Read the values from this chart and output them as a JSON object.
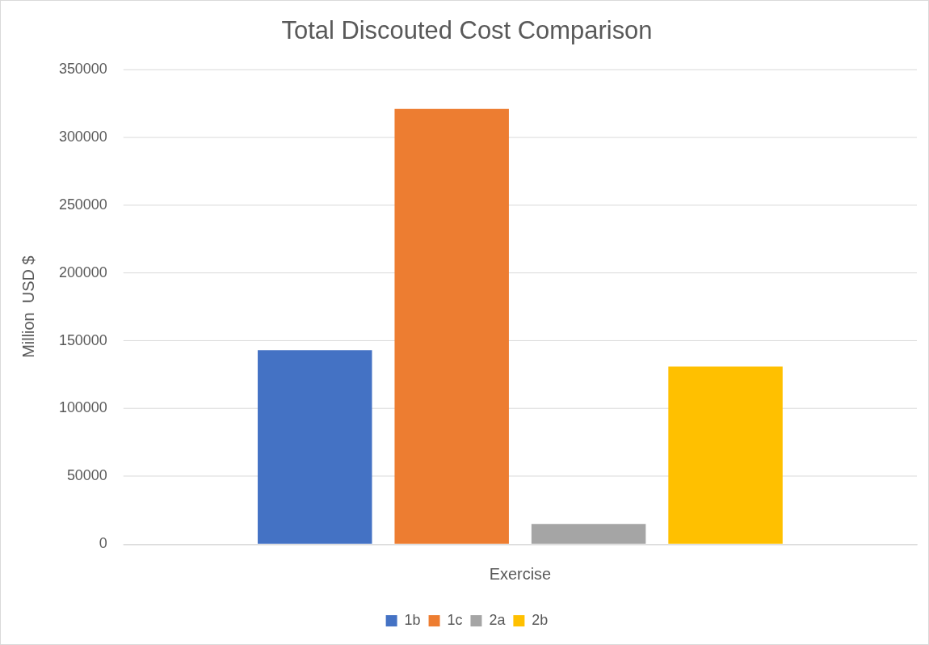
{
  "chart_data": {
    "type": "bar",
    "title": "Total Discouted Cost Comparison",
    "ylabel": "Million  USD $",
    "categories": [
      "Exercise"
    ],
    "series": [
      {
        "name": "1b",
        "color": "#4472c4",
        "values": [
          143000
        ]
      },
      {
        "name": "1c",
        "color": "#ed7d31",
        "values": [
          321000
        ]
      },
      {
        "name": "2a",
        "color": "#a5a5a5",
        "values": [
          15000
        ]
      },
      {
        "name": "2b",
        "color": "#ffc000",
        "values": [
          131000
        ]
      }
    ],
    "ylim": [
      0,
      350000
    ],
    "yticks": [
      0,
      50000,
      100000,
      150000,
      200000,
      250000,
      300000,
      350000
    ],
    "grid": "y",
    "legend": "bottom"
  }
}
